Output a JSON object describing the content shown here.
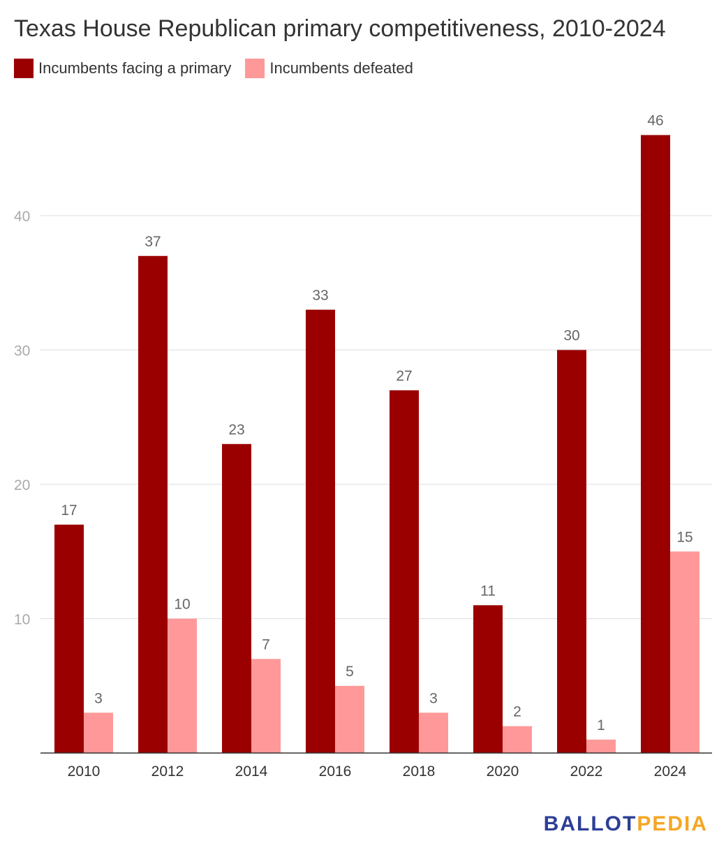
{
  "title": "Texas House Republican primary competitiveness, 2010-2024",
  "legend": {
    "items": [
      {
        "label": "Incumbents facing a primary",
        "color": "#9b0000"
      },
      {
        "label": "Incumbents defeated",
        "color": "#ff9999"
      }
    ]
  },
  "brand": {
    "part1": "BALLOT",
    "part2": "PEDIA",
    "color1": "#2d3e96",
    "color2": "#f5a623"
  },
  "chart_data": {
    "type": "bar",
    "categories": [
      "2010",
      "2012",
      "2014",
      "2016",
      "2018",
      "2020",
      "2022",
      "2024"
    ],
    "series": [
      {
        "name": "Incumbents facing a primary",
        "values": [
          17,
          37,
          23,
          33,
          27,
          11,
          30,
          46
        ],
        "color": "#9b0000"
      },
      {
        "name": "Incumbents defeated",
        "values": [
          3,
          10,
          7,
          5,
          3,
          2,
          1,
          15
        ],
        "color": "#ff9999"
      }
    ],
    "yticks": [
      10,
      20,
      30,
      40
    ],
    "ylim": [
      0,
      50
    ],
    "grid": true,
    "legend_position": "top-left",
    "data_labels": true
  }
}
